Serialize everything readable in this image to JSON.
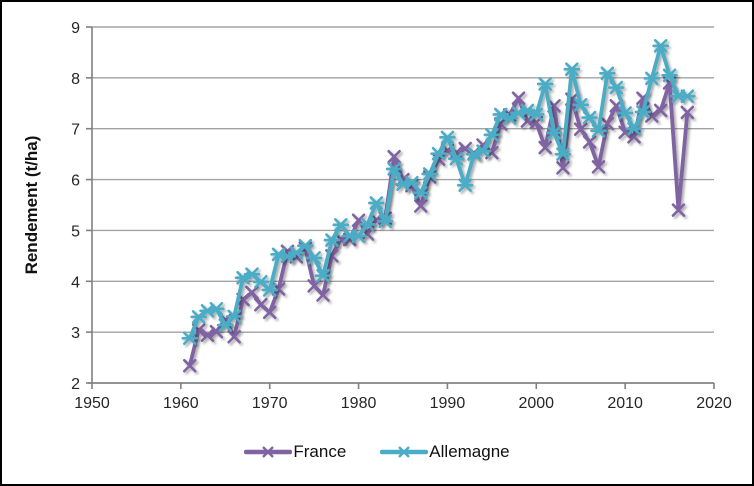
{
  "window": {
    "background_color": "#ffffff",
    "border_color": "#000000"
  },
  "chart_data": {
    "type": "line",
    "title": "",
    "ylabel": "Rendement (t/ha)",
    "xlabel": "",
    "xlim": [
      1950,
      2020
    ],
    "ylim": [
      2,
      9
    ],
    "x_ticks": [
      1950,
      1960,
      1970,
      1980,
      1990,
      2000,
      2010,
      2020
    ],
    "y_ticks": [
      2,
      3,
      4,
      5,
      6,
      7,
      8,
      9
    ],
    "grid": "horizontal gridlines on",
    "legend_position": "bottom-center",
    "axis_color": "#808080",
    "grid_color": "#a3a3a3",
    "text_color": "#262626",
    "years": [
      1961,
      1962,
      1963,
      1964,
      1965,
      1966,
      1967,
      1968,
      1969,
      1970,
      1971,
      1972,
      1973,
      1974,
      1975,
      1976,
      1977,
      1978,
      1979,
      1980,
      1981,
      1982,
      1983,
      1984,
      1985,
      1986,
      1987,
      1988,
      1989,
      1990,
      1991,
      1992,
      1993,
      1994,
      1995,
      1996,
      1997,
      1998,
      1999,
      2000,
      2001,
      2002,
      2003,
      2004,
      2005,
      2006,
      2007,
      2008,
      2009,
      2010,
      2011,
      2012,
      2013,
      2014,
      2015,
      2016,
      2017
    ],
    "series": [
      {
        "name": "France",
        "color": "#8064A2",
        "marker": "x",
        "values": [
          2.34,
          3.04,
          2.94,
          3.01,
          3.24,
          2.91,
          3.64,
          3.78,
          3.54,
          3.39,
          3.85,
          4.59,
          4.48,
          4.65,
          3.91,
          3.73,
          4.5,
          4.83,
          4.82,
          5.2,
          4.93,
          5.21,
          5.24,
          6.45,
          6.0,
          5.88,
          5.48,
          6.05,
          6.4,
          6.57,
          6.53,
          6.61,
          6.51,
          6.68,
          6.53,
          7.09,
          7.27,
          7.6,
          7.15,
          7.12,
          6.63,
          7.45,
          6.23,
          7.58,
          6.99,
          6.74,
          6.25,
          7.1,
          7.45,
          6.93,
          6.84,
          7.6,
          7.25,
          7.36,
          7.9,
          5.4,
          7.32
        ]
      },
      {
        "name": "Allemagne",
        "color": "#4BACC6",
        "marker": "asterisk",
        "values": [
          2.88,
          3.3,
          3.42,
          3.46,
          3.14,
          3.31,
          4.07,
          4.14,
          3.99,
          3.83,
          4.53,
          4.49,
          4.56,
          4.7,
          4.46,
          4.11,
          4.81,
          5.11,
          4.89,
          4.89,
          5.12,
          5.54,
          5.18,
          6.21,
          5.91,
          5.94,
          5.74,
          6.11,
          6.51,
          6.83,
          6.41,
          5.89,
          6.5,
          6.56,
          6.88,
          7.28,
          7.21,
          7.31,
          7.36,
          7.28,
          7.88,
          6.92,
          6.5,
          8.17,
          7.47,
          7.22,
          6.96,
          8.09,
          7.81,
          7.31,
          7.0,
          7.33,
          7.99,
          8.63,
          8.05,
          7.64,
          7.64
        ]
      }
    ]
  }
}
